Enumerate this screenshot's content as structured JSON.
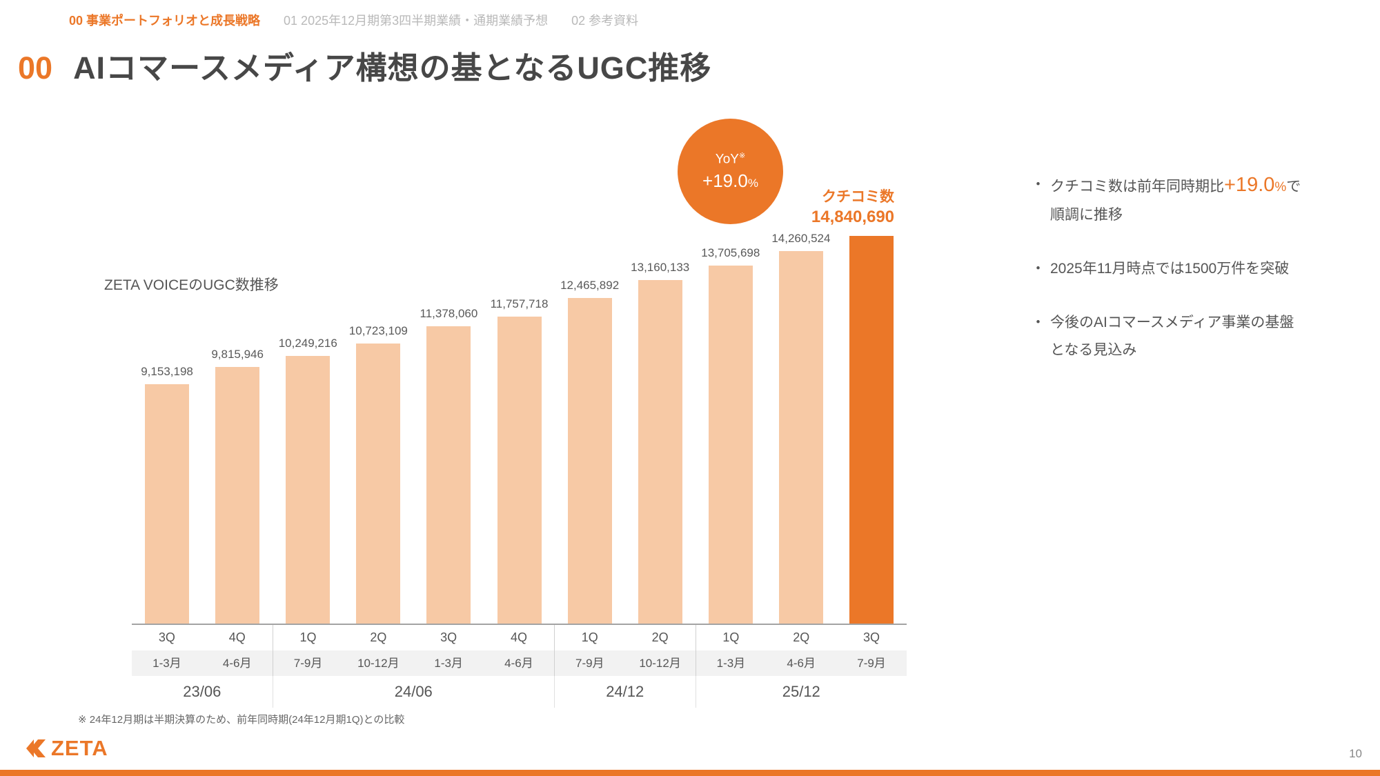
{
  "nav": {
    "tabs": [
      {
        "label": "00 事業ポートフォリオと成長戦略",
        "active": true
      },
      {
        "label": "01 2025年12月期第3四半期業績・通期業績予想",
        "active": false
      },
      {
        "label": "02 参考資料",
        "active": false
      }
    ]
  },
  "header": {
    "number": "00",
    "title": "AIコマースメディア構想の基となるUGC推移"
  },
  "chart_data": {
    "type": "bar",
    "title": "ZETA VOICEのUGC数推移",
    "values": [
      9153198,
      9815946,
      10249216,
      10723109,
      11378060,
      11757718,
      12465892,
      13160133,
      13705698,
      14260524,
      14840690
    ],
    "value_labels": [
      "9,153,198",
      "9,815,946",
      "10,249,216",
      "10,723,109",
      "11,378,060",
      "11,757,718",
      "12,465,892",
      "13,160,133",
      "13,705,698",
      "14,260,524",
      "14,840,690"
    ],
    "quarters": [
      "3Q",
      "4Q",
      "1Q",
      "2Q",
      "3Q",
      "4Q",
      "1Q",
      "2Q",
      "1Q",
      "2Q",
      "3Q"
    ],
    "months": [
      "1-3月",
      "4-6月",
      "7-9月",
      "10-12月",
      "1-3月",
      "4-6月",
      "7-9月",
      "10-12月",
      "1-3月",
      "4-6月",
      "7-9月"
    ],
    "fiscal_years": [
      {
        "label": "23/06",
        "span": 2
      },
      {
        "label": "24/06",
        "span": 4
      },
      {
        "label": "24/12",
        "span": 2
      },
      {
        "label": "25/12",
        "span": 3
      }
    ],
    "highlight_index": 10,
    "ylim": [
      0,
      14840690
    ],
    "grid": false,
    "legend": "none",
    "bar_color": "#F7C9A5",
    "highlight_color": "#EB7728"
  },
  "yoy": {
    "label": "YoY",
    "sup": "※",
    "value": "+19.0",
    "pct": "%"
  },
  "highlight_label": {
    "title": "クチコミ数",
    "value": "14,840,690"
  },
  "notes": {
    "marker": "・",
    "bullet1": {
      "pre": "クチコミ数は前年同時期比",
      "big": "+19.0",
      "pct": "%",
      "post": "で",
      "line2": "順調に推移"
    },
    "bullet2": {
      "line1": "2025年11月時点では1500万件を突破"
    },
    "bullet3": {
      "line1": "今後のAIコマースメディア事業の基盤",
      "line2": "となる見込み"
    }
  },
  "footnote": "※ 24年12月期は半期決算のため、前年同時期(24年12月期1Q)との比較",
  "footer": {
    "logo_text": "ZETA",
    "page": "10"
  },
  "colors": {
    "accent": "#EB7728",
    "bar_light": "#F7C9A5",
    "text_dark": "#474747",
    "text_gray": "#555555",
    "tab_inactive": "#B9B9B9"
  }
}
